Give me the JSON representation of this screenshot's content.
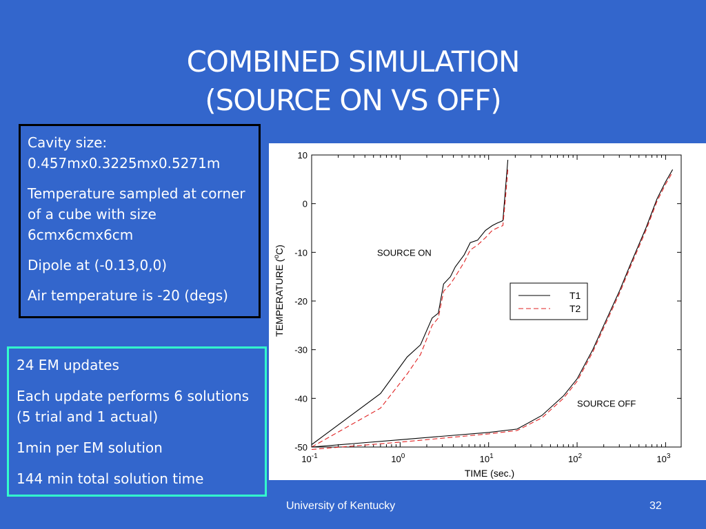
{
  "slide": {
    "title_line1": "COMBINED SIMULATION",
    "title_line2": "(SOURCE ON VS OFF)",
    "info_box_1": [
      "Cavity size: 0.457mx0.3225mx0.5271m",
      "Temperature sampled at corner of a cube with size 6cmx6cmx6cm",
      "Dipole at (-0.13,0,0)",
      "Air temperature is -20 (degs)"
    ],
    "info_box_2": [
      "24 EM updates",
      "Each update performs 6 solutions (5 trial and 1 actual)",
      "1min per EM solution",
      "144 min total solution time"
    ],
    "footer_left": "University of Kentucky",
    "footer_page": "32",
    "colors": {
      "background": "#3366cc",
      "box2_border": "#33ffcc"
    }
  },
  "chart_data": {
    "type": "line",
    "xlabel": "TIME (sec.)",
    "ylabel_main": "TEMPERATURE (",
    "ylabel_sup": "o",
    "ylabel_end": "C)",
    "x_scale": "log",
    "xlim": [
      0.1,
      1500
    ],
    "ylim": [
      -50,
      10
    ],
    "x_tick_labels": [
      {
        "base": "10",
        "exp": "-1",
        "value": 0.1
      },
      {
        "base": "10",
        "exp": "0",
        "value": 1
      },
      {
        "base": "10",
        "exp": "1",
        "value": 10
      },
      {
        "base": "10",
        "exp": "2",
        "value": 100
      },
      {
        "base": "10",
        "exp": "3",
        "value": 1000
      }
    ],
    "y_ticks": [
      10,
      0,
      -10,
      -20,
      -30,
      -40,
      -50
    ],
    "legend": [
      "T1",
      "T2"
    ],
    "legend_position": "center-right",
    "annotations": [
      {
        "text": "SOURCE ON",
        "x": 0.55,
        "y": -10
      },
      {
        "text": "SOURCE OFF",
        "x": 100,
        "y": -41
      }
    ],
    "series": [
      {
        "name": "T1",
        "group": "source_on",
        "style": "solid",
        "points": [
          [
            0.1,
            -49.5
          ],
          [
            0.6,
            -39
          ],
          [
            1.2,
            -31.5
          ],
          [
            1.7,
            -29
          ],
          [
            2.3,
            -23.5
          ],
          [
            2.7,
            -22.5
          ],
          [
            3.1,
            -16.5
          ],
          [
            3.7,
            -15
          ],
          [
            4.2,
            -13
          ],
          [
            5.3,
            -10.5
          ],
          [
            6.2,
            -8
          ],
          [
            7.5,
            -7.5
          ],
          [
            9.2,
            -5.5
          ],
          [
            11,
            -4.5
          ],
          [
            12.5,
            -4
          ],
          [
            14.5,
            -3.5
          ],
          [
            15.5,
            3
          ],
          [
            16.5,
            9
          ]
        ]
      },
      {
        "name": "T2",
        "group": "source_on",
        "style": "dashed",
        "points": [
          [
            0.1,
            -50
          ],
          [
            0.6,
            -42
          ],
          [
            1.2,
            -35
          ],
          [
            1.7,
            -31
          ],
          [
            2.3,
            -25
          ],
          [
            2.7,
            -23.5
          ],
          [
            3.1,
            -18
          ],
          [
            3.7,
            -16.5
          ],
          [
            4.2,
            -15
          ],
          [
            5.3,
            -12
          ],
          [
            6.2,
            -9.5
          ],
          [
            7.5,
            -8.5
          ],
          [
            9.2,
            -7
          ],
          [
            11,
            -5.5
          ],
          [
            12.5,
            -5
          ],
          [
            14.5,
            -4.5
          ],
          [
            15.5,
            1
          ],
          [
            16.5,
            7
          ]
        ]
      },
      {
        "name": "T1",
        "group": "source_off",
        "style": "solid",
        "points": [
          [
            0.1,
            -50
          ],
          [
            1,
            -48.5
          ],
          [
            10,
            -47
          ],
          [
            21,
            -46.3
          ],
          [
            40,
            -43.5
          ],
          [
            70,
            -39.5
          ],
          [
            100,
            -36
          ],
          [
            150,
            -30
          ],
          [
            200,
            -25
          ],
          [
            300,
            -18
          ],
          [
            400,
            -12.5
          ],
          [
            600,
            -5
          ],
          [
            800,
            1
          ],
          [
            1000,
            4.5
          ],
          [
            1200,
            7
          ]
        ]
      },
      {
        "name": "T2",
        "group": "source_off",
        "style": "dashed",
        "points": [
          [
            0.1,
            -50.5
          ],
          [
            1,
            -49
          ],
          [
            10,
            -47.3
          ],
          [
            21,
            -46.6
          ],
          [
            40,
            -44
          ],
          [
            70,
            -40
          ],
          [
            100,
            -36.5
          ],
          [
            150,
            -30.5
          ],
          [
            200,
            -25.5
          ],
          [
            300,
            -18.5
          ],
          [
            400,
            -13
          ],
          [
            600,
            -5.5
          ],
          [
            800,
            0.5
          ],
          [
            1000,
            4
          ],
          [
            1200,
            6.5
          ]
        ]
      }
    ]
  }
}
